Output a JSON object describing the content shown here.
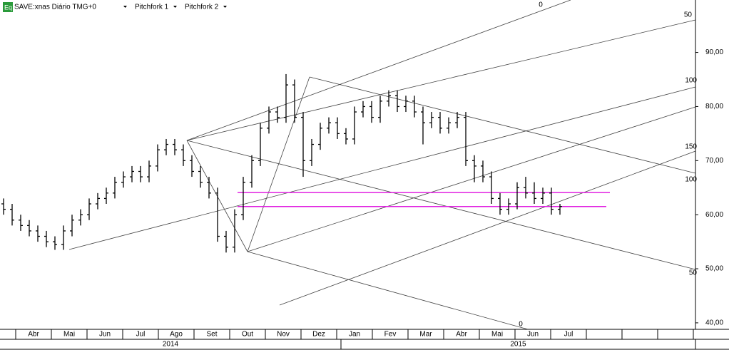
{
  "toolbar": {
    "icon": "Eq",
    "symbol": "SAVE:xnas Diário TMG+0",
    "tools": [
      "Pitchfork 1",
      "Pitchfork 2"
    ]
  },
  "chart_data": {
    "type": "ohlc",
    "color": "#000000",
    "ylim": [
      38.8,
      99.7
    ],
    "yticks": [
      {
        "value": 40,
        "label": "40,00"
      },
      {
        "value": 50,
        "label": "50,00"
      },
      {
        "value": 60,
        "label": "60,00"
      },
      {
        "value": 70,
        "label": "70,00"
      },
      {
        "value": 80,
        "label": "80,00"
      },
      {
        "value": 90,
        "label": "90,00"
      }
    ],
    "categories": [
      "Abr",
      "Mai",
      "Jun",
      "Jul",
      "Ago",
      "Set",
      "Out",
      "Nov",
      "Dez",
      "Jan",
      "Fev",
      "Mar",
      "Abr",
      "Mai",
      "Jun",
      "Jul",
      null,
      null,
      null
    ],
    "years": [
      "2014",
      "2015"
    ],
    "hlines": [
      64.1,
      61.5
    ],
    "hline_color": "#e020e0",
    "annotations": [
      "0",
      "50",
      "100",
      "150",
      "100",
      "50",
      "0"
    ],
    "values": [
      [
        62,
        63,
        60,
        61
      ],
      [
        61,
        62,
        58,
        59
      ],
      [
        59,
        60,
        57,
        58
      ],
      [
        58,
        59,
        56,
        57
      ],
      [
        57,
        58,
        55,
        56
      ],
      [
        56,
        57,
        54,
        55
      ],
      [
        55,
        56,
        53.5,
        54.5
      ],
      [
        54.5,
        58,
        53.5,
        57
      ],
      [
        57,
        60,
        56,
        59
      ],
      [
        59,
        61,
        58,
        60
      ],
      [
        60,
        63,
        59,
        62
      ],
      [
        62,
        64,
        61,
        63
      ],
      [
        63,
        65,
        62,
        64
      ],
      [
        64,
        67,
        63,
        66
      ],
      [
        66,
        68,
        65,
        67
      ],
      [
        67,
        69,
        66,
        68
      ],
      [
        68,
        69,
        66,
        67
      ],
      [
        67,
        70,
        66,
        69
      ],
      [
        69,
        73,
        68,
        72
      ],
      [
        72,
        74,
        71,
        73
      ],
      [
        73,
        74,
        71,
        72
      ],
      [
        72,
        73,
        69,
        70
      ],
      [
        70,
        71,
        67,
        68
      ],
      [
        68,
        69,
        65,
        66
      ],
      [
        66,
        67,
        63,
        64
      ],
      [
        64,
        65,
        55,
        56
      ],
      [
        56,
        57,
        53,
        54
      ],
      [
        54,
        61,
        53,
        60
      ],
      [
        60,
        67,
        59,
        66
      ],
      [
        66,
        71,
        65,
        70
      ],
      [
        70,
        77,
        69,
        76
      ],
      [
        76,
        80,
        75,
        79
      ],
      [
        79,
        80,
        77,
        78
      ],
      [
        78,
        86,
        77,
        84
      ],
      [
        84,
        85,
        77,
        78
      ],
      [
        78,
        79,
        67,
        70
      ],
      [
        70,
        74,
        69,
        73
      ],
      [
        73,
        77,
        72,
        76
      ],
      [
        76,
        78,
        75,
        77
      ],
      [
        77,
        78,
        74,
        75
      ],
      [
        75,
        76,
        73,
        74
      ],
      [
        74,
        80,
        73,
        79
      ],
      [
        79,
        81,
        78,
        80
      ],
      [
        80,
        81,
        77,
        78
      ],
      [
        78,
        82,
        77,
        81
      ],
      [
        81,
        83,
        80,
        82
      ],
      [
        82,
        83,
        79,
        80
      ],
      [
        80,
        82,
        79,
        81
      ],
      [
        81,
        82,
        78,
        79
      ],
      [
        79,
        80,
        73,
        77
      ],
      [
        77,
        79,
        76,
        78
      ],
      [
        78,
        79,
        75,
        76
      ],
      [
        76,
        78,
        75,
        77
      ],
      [
        77,
        79,
        76,
        78
      ],
      [
        78,
        79,
        69,
        70
      ],
      [
        70,
        71,
        66,
        69
      ],
      [
        69,
        70,
        66,
        67
      ],
      [
        67,
        68,
        62,
        63
      ],
      [
        63,
        64,
        60,
        61
      ],
      [
        61,
        63,
        60,
        62
      ],
      [
        62,
        66,
        61,
        65
      ],
      [
        65,
        67,
        63,
        64
      ],
      [
        64,
        66,
        62,
        63
      ],
      [
        63,
        65,
        62,
        64
      ],
      [
        64,
        65,
        60,
        61
      ],
      [
        61,
        62,
        60,
        61.5
      ]
    ]
  }
}
